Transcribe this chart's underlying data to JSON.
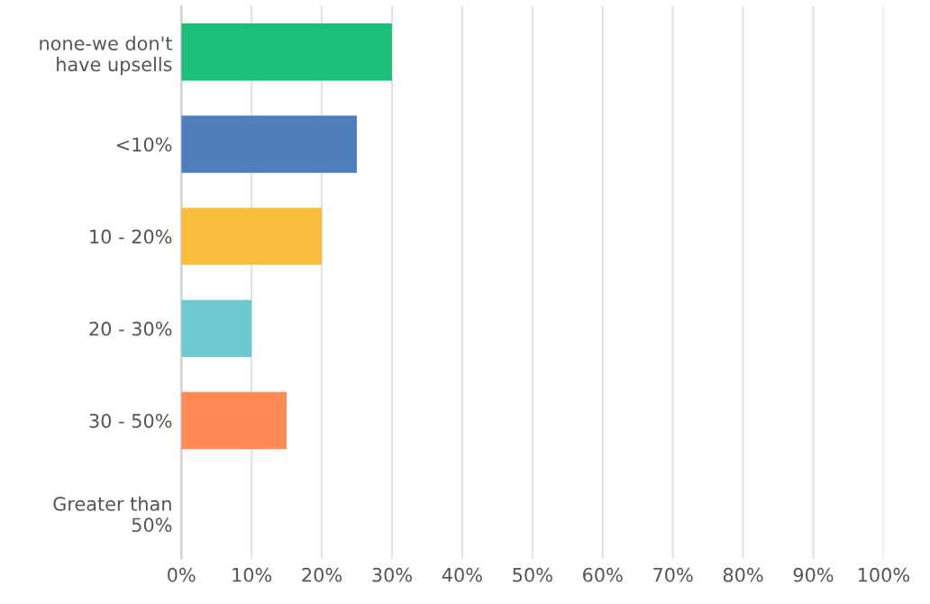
{
  "chart_data": {
    "type": "bar",
    "orientation": "horizontal",
    "categories": [
      "none-we don't\nhave upsells",
      "<10%",
      "10 - 20%",
      "20 - 30%",
      "30 - 50%",
      "Greater than\n50%"
    ],
    "values": [
      30,
      25,
      20,
      10,
      15,
      0
    ],
    "colors": [
      "#1dbf78",
      "#4f7ebc",
      "#fbbd3e",
      "#6ccbd0",
      "#ff8a58",
      "#999999"
    ],
    "xlim": [
      0,
      100
    ],
    "xticks": [
      {
        "value": 0,
        "label": "0%"
      },
      {
        "value": 10,
        "label": "10%"
      },
      {
        "value": 20,
        "label": "20%"
      },
      {
        "value": 30,
        "label": "30%"
      },
      {
        "value": 40,
        "label": "40%"
      },
      {
        "value": 50,
        "label": "50%"
      },
      {
        "value": 60,
        "label": "60%"
      },
      {
        "value": 70,
        "label": "70%"
      },
      {
        "value": 80,
        "label": "80%"
      },
      {
        "value": 90,
        "label": "90%"
      },
      {
        "value": 100,
        "label": "100%"
      }
    ],
    "grid": "x",
    "legend": false
  }
}
